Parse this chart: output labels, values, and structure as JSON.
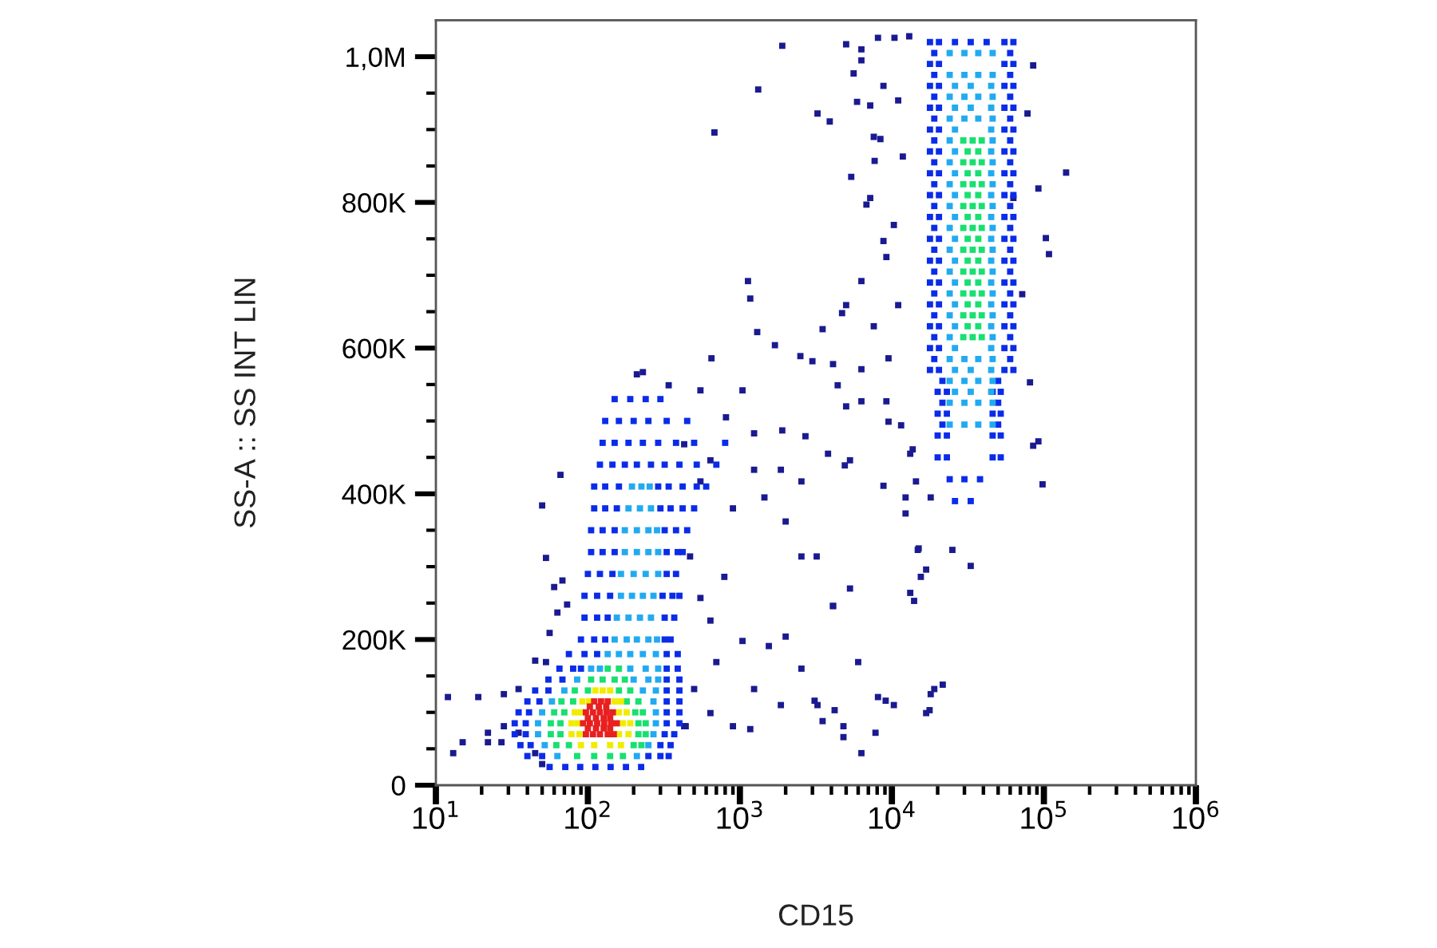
{
  "chart_data": {
    "type": "scatter",
    "xlabel": "CD15",
    "ylabel": "SS-A :: SS INT LIN",
    "log": "x",
    "marker": "square",
    "xlim": [
      10,
      1000000
    ],
    "ylim": [
      0,
      1050000
    ],
    "xticks": [
      {
        "value": 10,
        "label": "10$^{1}$"
      },
      {
        "value": 20,
        "label": null
      },
      {
        "value": 30,
        "label": null
      },
      {
        "value": 40,
        "label": null
      },
      {
        "value": 50,
        "label": null
      },
      {
        "value": 60,
        "label": null
      },
      {
        "value": 70,
        "label": null
      },
      {
        "value": 80,
        "label": null
      },
      {
        "value": 90,
        "label": null
      },
      {
        "value": 100,
        "label": "10$^{2}$"
      },
      {
        "value": 200,
        "label": null
      },
      {
        "value": 300,
        "label": null
      },
      {
        "value": 400,
        "label": null
      },
      {
        "value": 500,
        "label": null
      },
      {
        "value": 600,
        "label": null
      },
      {
        "value": 700,
        "label": null
      },
      {
        "value": 800,
        "label": null
      },
      {
        "value": 900,
        "label": null
      },
      {
        "value": 1000,
        "label": "10$^{3}$"
      },
      {
        "value": 2000,
        "label": null
      },
      {
        "value": 3000,
        "label": null
      },
      {
        "value": 4000,
        "label": null
      },
      {
        "value": 5000,
        "label": null
      },
      {
        "value": 6000,
        "label": null
      },
      {
        "value": 7000,
        "label": null
      },
      {
        "value": 8000,
        "label": null
      },
      {
        "value": 9000,
        "label": null
      },
      {
        "value": 10000,
        "label": "10$^{4}$"
      },
      {
        "value": 20000,
        "label": null
      },
      {
        "value": 30000,
        "label": null
      },
      {
        "value": 40000,
        "label": null
      },
      {
        "value": 50000,
        "label": null
      },
      {
        "value": 60000,
        "label": null
      },
      {
        "value": 70000,
        "label": null
      },
      {
        "value": 80000,
        "label": null
      },
      {
        "value": 90000,
        "label": null
      },
      {
        "value": 100000,
        "label": "10$^{5}$"
      },
      {
        "value": 200000,
        "label": null
      },
      {
        "value": 300000,
        "label": null
      },
      {
        "value": 400000,
        "label": null
      },
      {
        "value": 500000,
        "label": null
      },
      {
        "value": 600000,
        "label": null
      },
      {
        "value": 700000,
        "label": null
      },
      {
        "value": 800000,
        "label": null
      },
      {
        "value": 900000,
        "label": null
      },
      {
        "value": 1000000,
        "label": "10$^{6}$"
      }
    ],
    "yticks": [
      0,
      {
        "value": 50000,
        "label": null
      },
      {
        "value": 100000,
        "label": null
      },
      {
        "value": 150000,
        "label": null
      },
      {
        "value": 200000,
        "label": "200K"
      },
      {
        "value": 250000,
        "label": null
      },
      {
        "value": 300000,
        "label": null
      },
      {
        "value": 350000,
        "label": null
      },
      {
        "value": 400000,
        "label": "400K"
      },
      {
        "value": 450000,
        "label": null
      },
      {
        "value": 500000,
        "label": null
      },
      {
        "value": 550000,
        "label": null
      },
      {
        "value": 600000,
        "label": "600K"
      },
      {
        "value": 650000,
        "label": null
      },
      {
        "value": 700000,
        "label": null
      },
      {
        "value": 750000,
        "label": null
      },
      {
        "value": 800000,
        "label": "800K"
      },
      {
        "value": 850000,
        "label": null
      },
      {
        "value": 900000,
        "label": null
      },
      {
        "value": 950000,
        "label": null
      },
      {
        "value": 1000000,
        "label": "1,0M"
      }
    ],
    "series": [
      {
        "color": "#1a1a90",
        "x": [
          12,
          19,
          28,
          13,
          15,
          22,
          22,
          50,
          53,
          66,
          68,
          60,
          73,
          63,
          56,
          45,
          53,
          35,
          28,
          35,
          27,
          45,
          50,
          1300,
          1700,
          650,
          2500,
          3000,
          4100,
          5000,
          3800,
          4900,
          2700,
          1900,
          1240,
          810,
          1040,
          900,
          1450,
          2000,
          2540,
          3200,
          4100,
          2000,
          2540,
          3100,
          3500,
          1860,
          1240,
          900,
          1550,
          1040,
          790,
          550,
          700,
          500,
          430,
          640,
          470,
          550,
          640,
          430,
          1240,
          1860,
          2540,
          340,
          550,
          210,
          230,
          440,
          640,
          1170
        ],
        "values": [
          121000,
          121000,
          125000,
          44000,
          59000,
          72000,
          59000,
          384000,
          312000,
          426000,
          281000,
          272000,
          248000,
          237000,
          209000,
          171000,
          169000,
          132000,
          81000,
          72000,
          59000,
          44000,
          29000,
          622000,
          604000,
          586000,
          589000,
          582000,
          578000,
          520000,
          455000,
          439000,
          479000,
          487000,
          483000,
          505000,
          542000,
          380000,
          395000,
          362000,
          314000,
          314000,
          246000,
          204000,
          160000,
          116000,
          88000,
          110000,
          132000,
          81000,
          191000,
          198000,
          286000,
          257000,
          169000,
          132000,
          81000,
          226000,
          314000,
          417000,
          446000,
          468000,
          433000,
          433000,
          417000,
          549000,
          542000,
          564000,
          567000,
          81000,
          99000,
          77000
        ]
      },
      {
        "color": "#1a1a90",
        "x": [
          1900,
          1320,
          680,
          3240,
          3900,
          5600,
          6300,
          7200,
          8400,
          7700,
          5400,
          7200,
          10300,
          9200,
          6300,
          4700,
          3500,
          4400,
          6300,
          9200,
          11500,
          13700,
          14400,
          12300,
          15000,
          18000,
          16800,
          14000,
          19000,
          16800,
          10300,
          6300,
          4800,
          3240,
          1130,
          1170,
          140000,
          103000,
          108000,
          92000,
          81000,
          92000,
          98000,
          85000,
          78000,
          85000,
          72000,
          63000,
          5000,
          6300,
          8100,
          10400,
          13000,
          5900,
          8800,
          11000,
          7600,
          11800,
          8800,
          6800,
          5000,
          7600,
          11000,
          9500,
          6300,
          5300,
          9500,
          13200,
          8800,
          12300,
          15500,
          13200,
          14800,
          25000,
          33000,
          21600,
          18000,
          17700,
          5300,
          6000,
          8100,
          9100,
          4200,
          4800,
          7800,
          4100
        ],
        "values": [
          1015000,
          955000,
          896000,
          922000,
          911000,
          977000,
          1010000,
          933000,
          887000,
          857000,
          835000,
          806000,
          769000,
          725000,
          692000,
          648000,
          626000,
          549000,
          571000,
          527000,
          494000,
          461000,
          417000,
          373000,
          325000,
          395000,
          296000,
          253000,
          132000,
          99000,
          110000,
          44000,
          66000,
          110000,
          692000,
          668000,
          841000,
          751000,
          729000,
          819000,
          553000,
          472000,
          413000,
          466000,
          922000,
          988000,
          674000,
          806000,
          1017000,
          995000,
          1026000,
          1026000,
          1028000,
          938000,
          960000,
          940000,
          890000,
          863000,
          747000,
          797000,
          659000,
          630000,
          659000,
          586000,
          527000,
          446000,
          499000,
          455000,
          411000,
          395000,
          286000,
          264000,
          323000,
          323000,
          301000,
          138000,
          125000,
          103000,
          270000,
          169000,
          121000,
          116000,
          103000,
          81000,
          72000,
          246000
        ]
      },
      {
        "color": "#0a2ce8",
        "x": [
          56,
          71,
          89,
          112,
          141,
          178,
          224,
          40,
          50,
          250,
          300,
          340,
          36,
          42,
          300,
          350,
          33,
          39,
          320,
          370,
          33,
          39,
          330,
          400,
          35,
          41,
          330,
          400,
          40,
          48,
          330,
          400,
          45,
          55,
          330,
          400,
          55,
          68,
          330,
          400,
          65,
          80,
          90,
          330,
          390,
          75,
          95,
          115,
          330,
          390,
          90,
          110,
          130,
          320,
          350,
          95,
          115,
          135,
          320,
          370,
          95,
          115,
          140,
          310,
          360,
          400,
          100,
          120,
          145,
          330,
          380,
          105,
          125,
          150,
          330,
          390,
          420,
          105,
          125,
          150,
          320,
          380,
          450,
          110,
          130,
          155,
          300,
          350,
          420,
          500,
          110,
          130,
          160,
          290,
          340,
          420,
          520,
          600,
          120,
          145,
          175,
          210,
          260,
          320,
          400,
          520,
          700,
          125,
          150,
          185,
          230,
          290,
          380,
          500,
          800,
          130,
          160,
          200,
          250,
          330,
          450,
          150,
          190,
          240,
          300
        ],
        "values": [
          25000,
          25000,
          25000,
          25000,
          25000,
          25000,
          25000,
          40000,
          40000,
          40000,
          40000,
          40000,
          55000,
          55000,
          55000,
          55000,
          70000,
          70000,
          70000,
          70000,
          85000,
          85000,
          85000,
          85000,
          100000,
          100000,
          100000,
          100000,
          115000,
          115000,
          115000,
          115000,
          130000,
          130000,
          130000,
          130000,
          145000,
          145000,
          145000,
          145000,
          160000,
          160000,
          160000,
          160000,
          160000,
          180000,
          180000,
          180000,
          180000,
          180000,
          200000,
          200000,
          200000,
          200000,
          200000,
          230000,
          230000,
          230000,
          230000,
          230000,
          260000,
          260000,
          260000,
          260000,
          260000,
          260000,
          290000,
          290000,
          290000,
          290000,
          290000,
          320000,
          320000,
          320000,
          320000,
          320000,
          320000,
          350000,
          350000,
          350000,
          350000,
          350000,
          350000,
          380000,
          380000,
          380000,
          380000,
          380000,
          380000,
          380000,
          410000,
          410000,
          410000,
          410000,
          410000,
          410000,
          410000,
          410000,
          440000,
          440000,
          440000,
          440000,
          440000,
          440000,
          440000,
          440000,
          440000,
          470000,
          470000,
          470000,
          470000,
          470000,
          470000,
          470000,
          470000,
          500000,
          500000,
          500000,
          500000,
          500000,
          500000,
          530000,
          530000,
          530000,
          530000
        ]
      },
      {
        "color": "#0a2ce8",
        "x": [
          17800,
          20400,
          55000,
          63000,
          26000,
          33000,
          42000,
          17800,
          20400,
          55000,
          63000,
          17800,
          20400,
          55000,
          63000,
          17800,
          20400,
          55000,
          63000,
          17800,
          20400,
          55000,
          63000,
          17800,
          20400,
          55000,
          63000,
          17800,
          20400,
          55000,
          63000,
          17800,
          20400,
          55000,
          63000,
          17800,
          20400,
          55000,
          63000,
          17800,
          20400,
          55000,
          63000,
          17800,
          20400,
          55000,
          63000,
          17800,
          20400,
          55000,
          63000,
          17800,
          20400,
          55000,
          63000,
          17800,
          20400,
          55000,
          63000,
          17800,
          20400,
          55000,
          63000,
          17800,
          20400,
          55000,
          63000,
          20000,
          23000,
          46000,
          52000,
          20000,
          23000,
          46000,
          52000,
          20000,
          23000,
          46000,
          52000,
          20000,
          23000,
          46000,
          52000,
          19000,
          60000,
          19000,
          60000,
          19000,
          60000,
          19000,
          60000,
          19000,
          60000,
          19000,
          60000,
          19000,
          60000,
          19000,
          60000,
          19000,
          60000,
          19000,
          60000,
          19000,
          60000,
          19000,
          60000,
          19000,
          60000,
          19000,
          60000,
          19000,
          60000,
          21500,
          50000,
          21500,
          50000,
          21500,
          50000,
          24000,
          30000,
          38000,
          26000,
          33000
        ],
        "values": [
          1020000,
          1020000,
          1020000,
          1020000,
          1020000,
          1020000,
          1020000,
          990000,
          990000,
          990000,
          990000,
          960000,
          960000,
          960000,
          960000,
          930000,
          930000,
          930000,
          930000,
          900000,
          900000,
          900000,
          900000,
          870000,
          870000,
          870000,
          870000,
          840000,
          840000,
          840000,
          840000,
          810000,
          810000,
          810000,
          810000,
          780000,
          780000,
          780000,
          780000,
          750000,
          750000,
          750000,
          750000,
          720000,
          720000,
          720000,
          720000,
          690000,
          690000,
          690000,
          690000,
          660000,
          660000,
          660000,
          660000,
          630000,
          630000,
          630000,
          630000,
          600000,
          600000,
          600000,
          600000,
          570000,
          570000,
          570000,
          570000,
          540000,
          540000,
          540000,
          540000,
          510000,
          510000,
          510000,
          510000,
          480000,
          480000,
          480000,
          480000,
          450000,
          450000,
          450000,
          450000,
          1005000,
          1005000,
          975000,
          975000,
          945000,
          945000,
          915000,
          915000,
          885000,
          885000,
          855000,
          855000,
          825000,
          825000,
          795000,
          795000,
          765000,
          765000,
          735000,
          735000,
          705000,
          705000,
          675000,
          675000,
          645000,
          645000,
          615000,
          615000,
          585000,
          585000,
          555000,
          555000,
          525000,
          525000,
          495000,
          495000,
          420000,
          420000,
          420000,
          390000,
          390000
        ]
      },
      {
        "color": "#22aaf0",
        "x": [
          63,
          210,
          52,
          250,
          47,
          270,
          47,
          280,
          50,
          280,
          58,
          270,
          70,
          230,
          280,
          85,
          200,
          250,
          290,
          105,
          120,
          190,
          240,
          290,
          135,
          160,
          190,
          230,
          280,
          150,
          180,
          210,
          250,
          285,
          155,
          185,
          220,
          260,
          165,
          195,
          230,
          270,
          165,
          200,
          240,
          290,
          175,
          210,
          250,
          290,
          175,
          210,
          250,
          285,
          185,
          220,
          260,
          195,
          225,
          255
        ],
        "values": [
          40000,
          40000,
          55000,
          55000,
          70000,
          70000,
          85000,
          85000,
          100000,
          100000,
          115000,
          115000,
          130000,
          130000,
          130000,
          145000,
          145000,
          145000,
          145000,
          160000,
          160000,
          160000,
          160000,
          160000,
          180000,
          180000,
          180000,
          180000,
          180000,
          200000,
          200000,
          200000,
          200000,
          200000,
          230000,
          230000,
          230000,
          230000,
          260000,
          260000,
          260000,
          260000,
          290000,
          290000,
          290000,
          290000,
          320000,
          320000,
          320000,
          320000,
          350000,
          350000,
          350000,
          350000,
          380000,
          380000,
          380000,
          410000,
          410000,
          410000
        ]
      },
      {
        "color": "#22aaf0",
        "x": [
          24000,
          46000,
          30000,
          37000,
          24000,
          46000,
          30000,
          37000,
          24000,
          46000,
          30000,
          37000,
          24000,
          46000,
          30000,
          37000,
          24000,
          46000,
          24000,
          46000,
          24000,
          46000,
          24000,
          46000,
          24000,
          46000,
          24000,
          46000,
          24000,
          46000,
          24000,
          46000,
          24000,
          46000,
          24000,
          46000,
          24000,
          46000,
          30000,
          37000,
          24000,
          46000,
          30000,
          37000,
          24000,
          46000,
          30000,
          37000,
          24000,
          46000,
          30000,
          37000,
          26000,
          45000,
          33000,
          26000,
          45000,
          33000,
          26000,
          45000,
          26000,
          45000,
          26000,
          45000,
          26000,
          45000,
          26000,
          45000,
          26000,
          45000,
          26000,
          45000,
          26000,
          45000,
          26000,
          45000,
          26000,
          45000,
          26000,
          45000,
          26000,
          45000,
          33000,
          26000,
          45000,
          33000
        ],
        "values": [
          1005000,
          1005000,
          1005000,
          1005000,
          975000,
          975000,
          975000,
          975000,
          945000,
          945000,
          945000,
          945000,
          915000,
          915000,
          915000,
          915000,
          885000,
          885000,
          855000,
          855000,
          825000,
          825000,
          795000,
          795000,
          765000,
          765000,
          735000,
          735000,
          705000,
          705000,
          675000,
          675000,
          645000,
          645000,
          615000,
          615000,
          585000,
          585000,
          585000,
          585000,
          555000,
          555000,
          555000,
          555000,
          525000,
          525000,
          525000,
          525000,
          495000,
          495000,
          495000,
          495000,
          960000,
          960000,
          960000,
          930000,
          930000,
          930000,
          900000,
          900000,
          870000,
          870000,
          840000,
          840000,
          810000,
          810000,
          780000,
          780000,
          750000,
          750000,
          720000,
          720000,
          690000,
          690000,
          660000,
          660000,
          630000,
          630000,
          600000,
          600000,
          570000,
          570000,
          570000,
          540000,
          540000,
          540000
        ]
      },
      {
        "color": "#18e070",
        "x": [
          85,
          110,
          140,
          170,
          62,
          75,
          200,
          225,
          57,
          66,
          215,
          240,
          57,
          66,
          215,
          240,
          60,
          70,
          205,
          230,
          67,
          80,
          180,
          215,
          82,
          100,
          160,
          190,
          105,
          125,
          150,
          175,
          135,
          160,
          29500,
          34000,
          39000,
          29500,
          34000,
          39000,
          29500,
          34000,
          39000,
          29500,
          34000,
          39000,
          29500,
          34000,
          39000,
          29500,
          34000,
          39000,
          29500,
          34000,
          39000,
          29500,
          34000,
          39000,
          29500,
          34000,
          39000,
          29500,
          34000,
          39000,
          31500,
          37000,
          31500,
          37000,
          31500,
          37000,
          31500,
          37000,
          31500,
          37000,
          31500,
          37000,
          31500,
          37000,
          31500,
          37000,
          31500,
          37000
        ],
        "values": [
          40000,
          40000,
          40000,
          40000,
          55000,
          55000,
          55000,
          55000,
          70000,
          70000,
          70000,
          70000,
          85000,
          85000,
          85000,
          85000,
          100000,
          100000,
          100000,
          100000,
          115000,
          115000,
          115000,
          115000,
          130000,
          130000,
          130000,
          130000,
          145000,
          145000,
          145000,
          145000,
          160000,
          160000,
          885000,
          885000,
          885000,
          855000,
          855000,
          855000,
          825000,
          825000,
          825000,
          795000,
          795000,
          795000,
          765000,
          765000,
          765000,
          735000,
          735000,
          735000,
          705000,
          705000,
          705000,
          675000,
          675000,
          675000,
          645000,
          645000,
          645000,
          615000,
          615000,
          615000,
          870000,
          870000,
          840000,
          840000,
          810000,
          810000,
          780000,
          780000,
          750000,
          750000,
          720000,
          720000,
          690000,
          690000,
          660000,
          660000,
          630000,
          630000
        ]
      },
      {
        "color": "#f0ec00",
        "x": [
          90,
          110,
          140,
          165,
          78,
          88,
          160,
          185,
          78,
          86,
          170,
          190,
          82,
          90,
          160,
          180,
          92,
          102,
          150,
          165,
          112,
          125,
          140
        ],
        "values": [
          55000,
          55000,
          55000,
          55000,
          70000,
          70000,
          70000,
          70000,
          85000,
          85000,
          85000,
          85000,
          100000,
          100000,
          100000,
          100000,
          115000,
          115000,
          115000,
          115000,
          130000,
          130000,
          130000
        ]
      },
      {
        "color": "#e82020",
        "x": [
          97,
          108,
          120,
          135,
          148,
          100,
          113,
          127,
          140,
          93,
          103,
          115,
          128,
          142,
          155,
          100,
          113,
          127,
          140,
          97,
          108,
          120,
          133,
          146,
          103,
          118,
          132,
          110,
          122,
          135
        ],
        "values": [
          70000,
          70000,
          70000,
          70000,
          70000,
          78000,
          78000,
          78000,
          78000,
          85000,
          85000,
          85000,
          85000,
          85000,
          85000,
          92000,
          92000,
          92000,
          92000,
          100000,
          100000,
          100000,
          100000,
          100000,
          108000,
          108000,
          108000,
          115000,
          115000,
          115000
        ]
      }
    ]
  }
}
